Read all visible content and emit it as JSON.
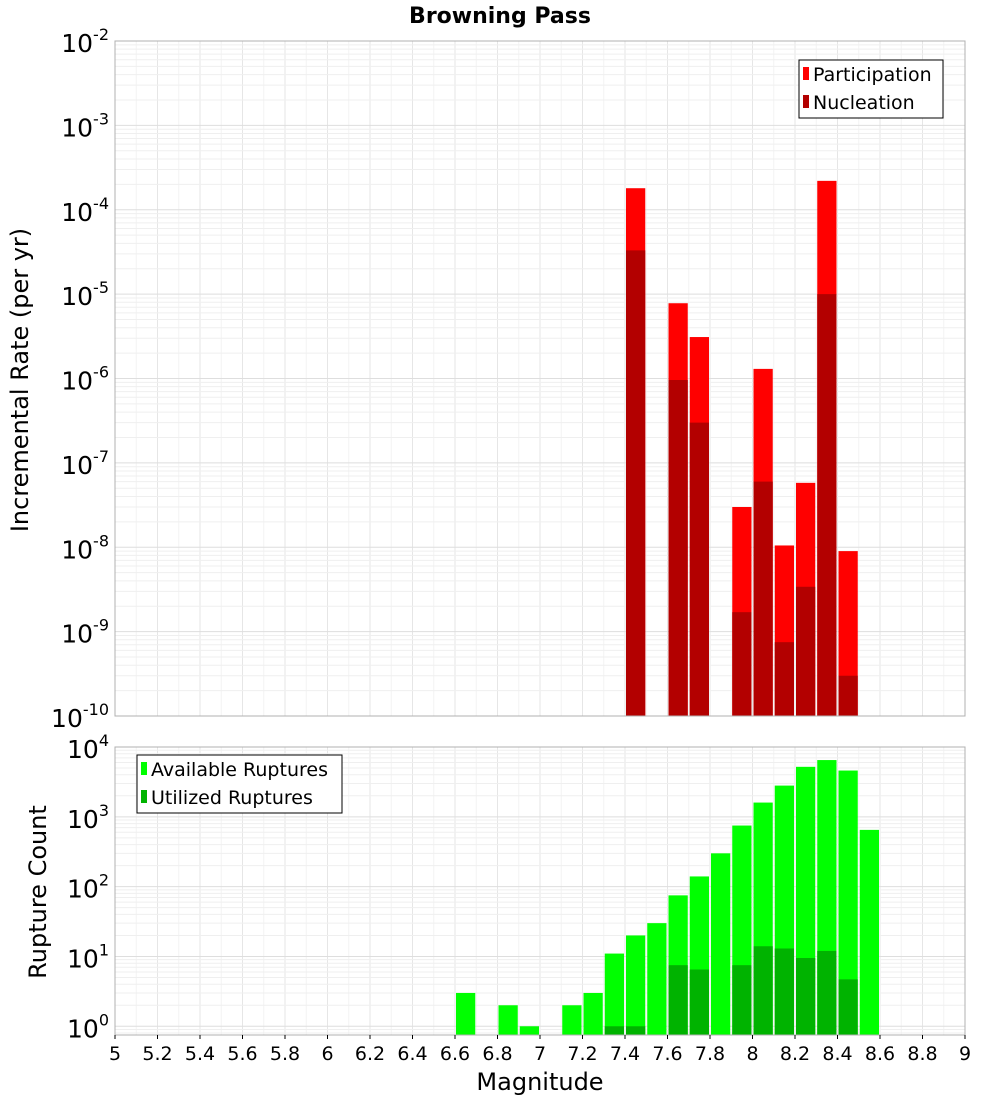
{
  "chart_data": [
    {
      "type": "bar",
      "title": "Browning Pass",
      "xlabel": "",
      "ylabel": "Incremental Rate (per yr)",
      "yscale": "log",
      "ylim": [
        1e-10,
        0.01
      ],
      "xlim": [
        5,
        9
      ],
      "bar_width": 0.1,
      "grid": true,
      "legend_position": "top-right",
      "ytick_exponents": [
        "-10",
        "-9",
        "-8",
        "-7",
        "-6",
        "-5",
        "-4",
        "-3",
        "-2"
      ],
      "ytick_base": "10",
      "series": [
        {
          "name": "Participation",
          "color": "#ff0000",
          "x": [
            7.45,
            7.65,
            7.75,
            7.95,
            8.05,
            8.15,
            8.25,
            8.35,
            8.45
          ],
          "values": [
            0.00018,
            7.8e-06,
            3.1e-06,
            3e-08,
            1.3e-06,
            1.05e-08,
            5.8e-08,
            0.00022,
            9e-09
          ]
        },
        {
          "name": "Nucleation",
          "color": "#b30000",
          "x": [
            7.45,
            7.65,
            7.75,
            7.95,
            8.05,
            8.15,
            8.25,
            8.35,
            8.45
          ],
          "values": [
            3.3e-05,
            9.6e-07,
            3e-07,
            1.7e-09,
            6e-08,
            7.5e-10,
            3.4e-09,
            1e-05,
            3e-10
          ]
        }
      ]
    },
    {
      "type": "bar",
      "title": "",
      "xlabel": "Magnitude",
      "ylabel": "Rupture Count",
      "yscale": "log",
      "ylim": [
        0.75,
        10000
      ],
      "xlim": [
        5,
        9
      ],
      "bar_width": 0.1,
      "grid": true,
      "legend_position": "top-left",
      "ytick_exponents": [
        "0",
        "1",
        "2",
        "3",
        "4"
      ],
      "ytick_base": "10",
      "xticks": [
        "5",
        "5.2",
        "5.4",
        "5.6",
        "5.8",
        "6",
        "6.2",
        "6.4",
        "6.6",
        "6.8",
        "7",
        "7.2",
        "7.4",
        "7.6",
        "7.8",
        "8",
        "8.2",
        "8.4",
        "8.6",
        "8.8",
        "9"
      ],
      "series": [
        {
          "name": "Available Ruptures",
          "color": "#00ff00",
          "x": [
            6.65,
            6.85,
            6.95,
            7.15,
            7.25,
            7.35,
            7.45,
            7.55,
            7.65,
            7.75,
            7.85,
            7.95,
            8.05,
            8.15,
            8.25,
            8.35,
            8.45,
            8.55
          ],
          "values": [
            3,
            2,
            1,
            2,
            3,
            11,
            20,
            30,
            75,
            140,
            300,
            750,
            1600,
            2800,
            5200,
            6500,
            4600,
            650
          ]
        },
        {
          "name": "Utilized Ruptures",
          "color": "#00b300",
          "x": [
            7.35,
            7.45,
            7.65,
            7.75,
            7.95,
            8.05,
            8.15,
            8.25,
            8.35,
            8.45
          ],
          "values": [
            1,
            1,
            7.5,
            6.5,
            7.5,
            14,
            13,
            9.5,
            12,
            4.7
          ]
        }
      ]
    }
  ]
}
